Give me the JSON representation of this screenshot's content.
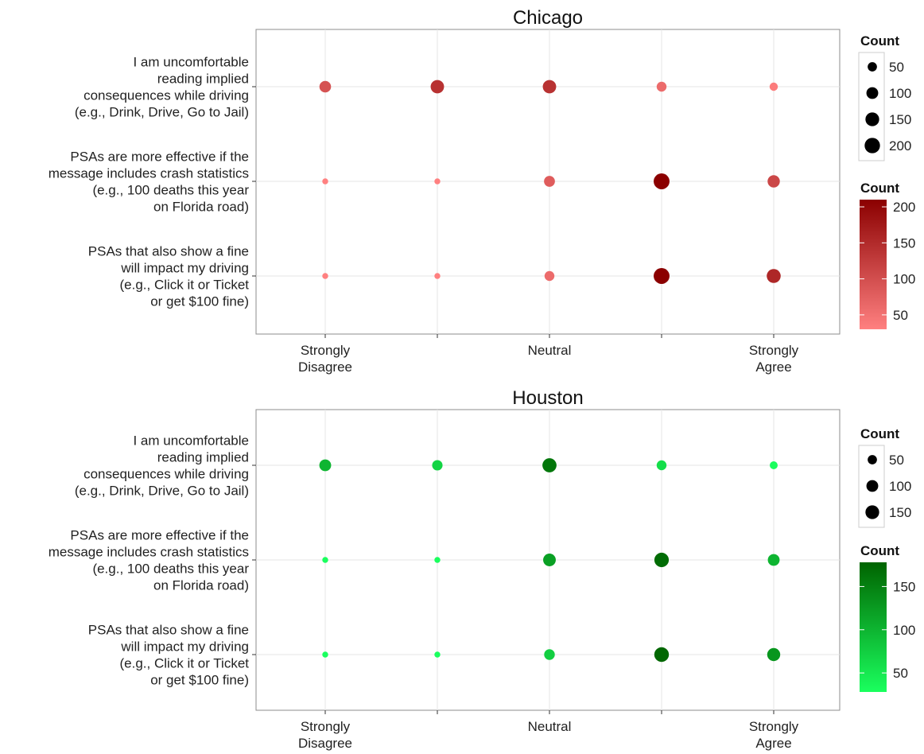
{
  "chart_data": [
    {
      "type": "scatter",
      "title": "Chicago",
      "x_categories": [
        "Strongly Disagree",
        "",
        "Neutral",
        "",
        "Strongly Agree"
      ],
      "x_tick_labels": [
        [
          "Strongly",
          "Disagree"
        ],
        [],
        [
          "Neutral"
        ],
        [],
        [
          "Strongly",
          "Agree"
        ]
      ],
      "y_categories": [
        [
          "I am uncomfortable",
          "reading implied",
          "consequences while driving",
          "(e.g., Drink, Drive, Go to Jail)"
        ],
        [
          "PSAs are more effective if the",
          "message includes crash statistics",
          "(e.g., 100 deaths this year",
          "on Florida road)"
        ],
        [
          "PSAs that also show a fine",
          "will impact my driving",
          "(e.g., Click it or Ticket",
          "or get $100 fine)"
        ]
      ],
      "series": [
        {
          "values": [
            95,
            140,
            140,
            60,
            35
          ]
        },
        {
          "values": [
            10,
            10,
            80,
            215,
            110
          ]
        },
        {
          "values": [
            10,
            10,
            60,
            215,
            155
          ]
        }
      ],
      "grid": true,
      "legend_position": "right",
      "color_scale": {
        "low": "#ff8080",
        "high": "#8b0000",
        "min": 30,
        "max": 210
      },
      "size_legend": {
        "title": "Count",
        "values": [
          50,
          100,
          150,
          200
        ],
        "labels": [
          "50",
          "100",
          "150",
          "200"
        ]
      },
      "color_legend": {
        "title": "Count",
        "ticks": [
          50,
          100,
          150,
          200
        ],
        "labels": [
          "50",
          "100",
          "150",
          "200"
        ]
      }
    },
    {
      "type": "scatter",
      "title": "Houston",
      "x_categories": [
        "Strongly Disagree",
        "",
        "Neutral",
        "",
        "Strongly Agree"
      ],
      "x_tick_labels": [
        [
          "Strongly",
          "Disagree"
        ],
        [],
        [
          "Neutral"
        ],
        [],
        [
          "Strongly",
          "Agree"
        ]
      ],
      "y_categories": [
        [
          "I am uncomfortable",
          "reading implied",
          "consequences while driving",
          "(e.g., Drink, Drive, Go to Jail)"
        ],
        [
          "PSAs are more effective if the",
          "message includes crash statistics",
          "(e.g., 100 deaths this year",
          "on Florida road)"
        ],
        [
          "PSAs that also show a fine",
          "will impact my driving",
          "(e.g., Click it or Ticket",
          "or get $100 fine)"
        ]
      ],
      "series": [
        {
          "values": [
            100,
            70,
            160,
            60,
            30
          ]
        },
        {
          "values": [
            10,
            10,
            120,
            170,
            100
          ]
        },
        {
          "values": [
            10,
            10,
            75,
            175,
            130
          ]
        }
      ],
      "grid": true,
      "legend_position": "right",
      "color_scale": {
        "low": "#1aff5e",
        "high": "#006400",
        "min": 28,
        "max": 178
      },
      "size_legend": {
        "title": "Count",
        "values": [
          50,
          100,
          150
        ],
        "labels": [
          "50",
          "100",
          "150"
        ]
      },
      "color_legend": {
        "title": "Count",
        "ticks": [
          50,
          100,
          150
        ],
        "labels": [
          "50",
          "100",
          "150"
        ]
      }
    }
  ]
}
